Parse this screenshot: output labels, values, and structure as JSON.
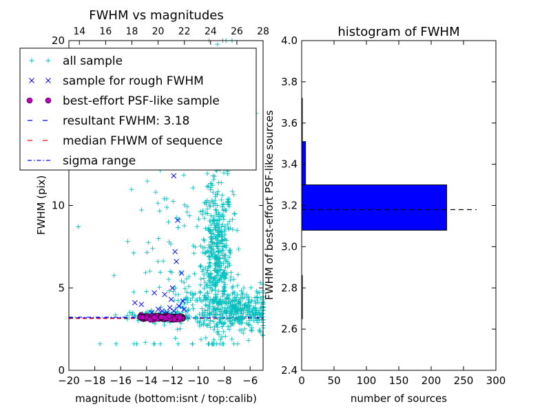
{
  "chart_data": [
    {
      "type": "scatter",
      "title": "FWHM vs magnitudes",
      "xlabel": "magnitude (bottom:isnt / top:calib)",
      "ylabel": "FWHM (pix)",
      "xlim": [
        -20,
        -5
      ],
      "ylim": [
        0,
        20
      ],
      "x_ticks": [
        -20,
        -18,
        -16,
        -14,
        -12,
        -10,
        -8,
        -6
      ],
      "x_tick_labels": [
        "−20",
        "−18",
        "−16",
        "−14",
        "−12",
        "−10",
        "−8",
        "−6"
      ],
      "y_ticks": [
        0,
        5,
        10,
        20
      ],
      "y_tick_labels": [
        "0",
        "5",
        "10",
        "20"
      ],
      "top_xlim": [
        13.2,
        28
      ],
      "top_x_ticks": [
        14,
        16,
        18,
        20,
        22,
        24,
        26,
        28
      ],
      "top_x_tick_labels": [
        "14",
        "16",
        "18",
        "20",
        "22",
        "24",
        "26",
        "28"
      ],
      "legend": {
        "placement": "upper-left",
        "entries": [
          {
            "label": "all sample",
            "marker": "plus",
            "color": "#00bfbf"
          },
          {
            "label": "sample for rough FWHM",
            "marker": "x",
            "color": "#0000ff"
          },
          {
            "label": "best-effort PSF-like sample",
            "marker": "circle",
            "color": "#bf00bf"
          },
          {
            "label": "resultant FWHM: 3.18",
            "marker": "dash",
            "color": "#0000ff"
          },
          {
            "label": "median FHWM of sequence",
            "marker": "dash",
            "color": "#ff0000"
          },
          {
            "label": "sigma range",
            "marker": "dashdot",
            "color": "#0000ff"
          }
        ]
      },
      "hlines": [
        {
          "y": 3.18,
          "style": "dashed",
          "color": "#0000ff"
        },
        {
          "y": 3.14,
          "style": "dashed",
          "color": "#ff0000"
        },
        {
          "y": 3.22,
          "style": "dashdot",
          "color": "#0000ff"
        }
      ],
      "series": [
        {
          "name": "all sample",
          "marker": "plus",
          "color": "#00bfbf",
          "clusters": [
            {
              "x_center": -8.6,
              "x_spread": 0.6,
              "y_center": 6.5,
              "y_spread": 2.5,
              "count": 430
            },
            {
              "x_center": -8.4,
              "x_spread": 0.9,
              "y_center": 12,
              "y_spread": 4.5,
              "count": 130
            },
            {
              "x_center": -7.2,
              "x_spread": 1.1,
              "y_center": 3.6,
              "y_spread": 0.6,
              "count": 210
            },
            {
              "x_center": -5.8,
              "x_spread": 0.7,
              "y_center": 3.6,
              "y_spread": 0.8,
              "count": 90
            },
            {
              "x_center": -12.8,
              "x_spread": 1.2,
              "y_center": 3.3,
              "y_spread": 0.15,
              "count": 150
            },
            {
              "x_center": -12.5,
              "x_spread": 1.8,
              "y_center": 8,
              "y_spread": 4.5,
              "count": 90
            },
            {
              "x_center": -10.5,
              "x_spread": 1.0,
              "y_center": 4.0,
              "y_spread": 0.7,
              "count": 60
            }
          ]
        },
        {
          "name": "sample for rough FWHM",
          "marker": "x",
          "color": "#0000ff",
          "points": [
            [
              -14.4,
              4.0
            ],
            [
              -13.4,
              4.7
            ],
            [
              -12.6,
              4.6
            ],
            [
              -12.1,
              4.3
            ],
            [
              -12.0,
              5.0
            ],
            [
              -11.8,
              7.2
            ],
            [
              -11.7,
              6.6
            ],
            [
              -11.6,
              9.1
            ],
            [
              -11.3,
              5.9
            ],
            [
              -11.2,
              4.2
            ],
            [
              -11.9,
              11.8
            ],
            [
              -12.2,
              3.8
            ],
            [
              -13.1,
              3.7
            ],
            [
              -11.5,
              3.9
            ],
            [
              -12.8,
              3.6
            ],
            [
              -14.9,
              4.1
            ],
            [
              -11.1,
              3.7
            ],
            [
              -12.4,
              3.5
            ],
            [
              -13.6,
              3.5
            ],
            [
              -11.9,
              3.6
            ]
          ]
        },
        {
          "name": "best-effort PSF-like sample",
          "marker": "circle",
          "color": "#bf00bf",
          "x_range": [
            -14.5,
            -11.2
          ],
          "y_center": 3.2,
          "y_spread": 0.05,
          "count": 160
        }
      ]
    },
    {
      "type": "bar",
      "orientation": "horizontal",
      "title": "histogram of FWHM",
      "xlabel": "number of sources",
      "ylabel": "FWHM of best-effort PSF-like sources",
      "xlim": [
        0,
        300
      ],
      "ylim": [
        2.4,
        4.0
      ],
      "x_ticks": [
        0,
        50,
        100,
        150,
        200,
        250,
        300
      ],
      "y_ticks": [
        2.4,
        2.6,
        2.8,
        3.0,
        3.2,
        3.4,
        3.6,
        3.8,
        4.0
      ],
      "y_tick_labels": [
        "2.4",
        "2.6",
        "2.8",
        "3.0",
        "3.2",
        "3.4",
        "3.6",
        "3.8",
        "4.0"
      ],
      "bars": [
        {
          "y0": 2.65,
          "y1": 2.86,
          "value": 1
        },
        {
          "y0": 3.08,
          "y1": 3.3,
          "value": 224
        },
        {
          "y0": 3.3,
          "y1": 3.51,
          "value": 6
        },
        {
          "y0": 3.51,
          "y1": 3.72,
          "value": 1
        }
      ],
      "bar_color": "#0000ff",
      "hline": {
        "y": 3.18,
        "x_end": 270,
        "style": "dashed",
        "color": "#000000"
      }
    }
  ]
}
